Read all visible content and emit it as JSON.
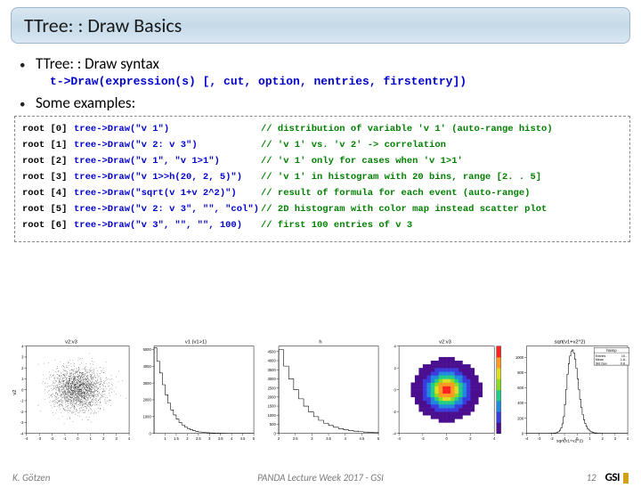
{
  "title": "TTree: : Draw Basics",
  "bullet1": "TTree: : Draw syntax",
  "syntax_call": "t->Draw(expression(s) [, cut, option, nentries, firstentry])",
  "bullet2": "Some examples:",
  "rows": [
    {
      "p": "root [0]",
      "c": "tree->Draw(\"v 1\")",
      "m": "// distribution of variable 'v 1' (auto-range histo)"
    },
    {
      "p": "root [1]",
      "c": "tree->Draw(\"v 2: v 3\")",
      "m": "// 'v 1' vs. 'v 2' -> correlation"
    },
    {
      "p": "root [2]",
      "c": "tree->Draw(\"v 1\", \"v 1>1\")",
      "m": "// 'v 1' only for cases when 'v 1>1'"
    },
    {
      "p": "root [3]",
      "c": "tree->Draw(\"v 1>>h(20, 2, 5)\")",
      "m": "// 'v 1' in histogram with 20 bins, range [2. . 5]"
    },
    {
      "p": "root [4]",
      "c": "tree->Draw(\"sqrt(v 1+v 2^2)\")",
      "m": "// result of formula for each event (auto-range)"
    },
    {
      "p": "root [5]",
      "c": "tree->Draw(\"v 2: v 3\", \"\", \"col\")",
      "m": "// 2D histogram with color map instead scatter plot"
    },
    {
      "p": "root [6]",
      "c": "tree->Draw(\"v 3\", \"\", \"\", 100)",
      "m": "  // first 100 entries of v 3"
    }
  ],
  "plots": {
    "scatter": {
      "type": "scatter",
      "title": "v2:v3",
      "xrange": [
        -4,
        4
      ],
      "yrange": [
        -4,
        4
      ],
      "xticks": [
        -4,
        -3,
        -2,
        -1,
        0,
        1,
        2,
        3,
        4
      ],
      "yticks": [
        -4,
        -3,
        -2,
        -1,
        0,
        1,
        2,
        3,
        4
      ],
      "n_points": 2200,
      "point_color": "#000000",
      "bg": "#ffffff",
      "ytitle": "v2",
      "tick_fontsize": 6
    },
    "hist1": {
      "type": "histogram",
      "title": "v1 {v1>1}",
      "xrange": [
        0.5,
        5
      ],
      "yrange": [
        0,
        5200
      ],
      "xticks": [
        1,
        1.5,
        2,
        2.5,
        3,
        3.5,
        4,
        4.5,
        5
      ],
      "yticks": [
        0,
        1000,
        2000,
        3000,
        4000,
        5000
      ],
      "bar_color": "none",
      "bar_stroke": "#000000",
      "bins": [
        5100,
        4300,
        3600,
        2900,
        2300,
        1800,
        1400,
        1100,
        850,
        650,
        500,
        380,
        290,
        220,
        160,
        120,
        90,
        68,
        50,
        38,
        28,
        20,
        15,
        11,
        8,
        6,
        4,
        3,
        2,
        2,
        1,
        1,
        1,
        1,
        0,
        0
      ]
    },
    "hist2": {
      "type": "histogram",
      "title": "h",
      "ytitle": "",
      "xrange": [
        2,
        5
      ],
      "yrange": [
        0,
        4800
      ],
      "xticks": [
        2,
        2.5,
        3,
        3.5,
        4,
        4.5,
        5
      ],
      "yticks": [
        0,
        500,
        1000,
        1500,
        2000,
        2500,
        3000,
        3500,
        4000,
        4500
      ],
      "bar_color": "none",
      "bar_stroke": "#000000",
      "bins": [
        4600,
        3700,
        3000,
        2400,
        1900,
        1500,
        1180,
        920,
        720,
        560,
        435,
        338,
        262,
        203,
        157,
        121,
        94,
        72,
        56,
        43
      ]
    },
    "colz": {
      "type": "heatmap",
      "title": "v2:v3",
      "xrange": [
        -4,
        4
      ],
      "yrange": [
        -4,
        4
      ],
      "xticks": [
        -4,
        -2,
        0,
        2,
        4
      ],
      "yticks": [
        -4,
        -2,
        0,
        2,
        4
      ],
      "palette": [
        "#4a0e8f",
        "#3a3add",
        "#2288dd",
        "#22cc88",
        "#88dd22",
        "#dddd22",
        "#ff9922",
        "#ff2222"
      ],
      "bg": "#ffffff"
    },
    "hist3": {
      "type": "histogram",
      "title": "sqrt(v1+v2^2)",
      "stat": {
        "entries": "10...",
        "mean": "1.8...",
        "std": "0.8..."
      },
      "xrange": [
        -4,
        4
      ],
      "yrange": [
        0,
        1150
      ],
      "xticks": [
        -4,
        -3,
        -2,
        -1,
        0,
        1,
        2,
        3,
        4
      ],
      "yticks": [
        0,
        200,
        400,
        600,
        800,
        1000
      ],
      "bar_color": "none",
      "bar_stroke": "#000000",
      "bins": [
        0,
        0,
        0,
        0,
        0,
        0,
        0,
        0,
        0,
        0,
        0,
        0,
        0,
        0,
        0,
        0,
        0,
        0,
        1,
        1,
        2,
        3,
        5,
        8,
        14,
        24,
        42,
        72,
        126,
        220,
        380,
        580,
        780,
        920,
        1020,
        1080,
        1100,
        1060,
        980,
        860,
        720,
        580,
        450,
        340,
        250,
        180,
        130,
        92,
        64,
        44,
        30,
        20,
        13,
        9,
        6,
        4,
        2,
        2,
        1,
        1,
        0,
        0,
        0,
        0,
        0,
        0,
        0,
        0,
        0,
        0,
        0,
        0,
        0,
        0,
        0,
        0,
        0,
        0,
        0,
        0
      ]
    }
  },
  "footer": {
    "left": "K. Götzen",
    "center": "PANDA Lecture Week 2017 - GSI",
    "page": "12",
    "logo": "GSI"
  },
  "colors": {
    "title_bg_top": "#d9e6f2",
    "title_border": "#a0b8cc",
    "code": "#0000cc",
    "comment": "#008000"
  }
}
